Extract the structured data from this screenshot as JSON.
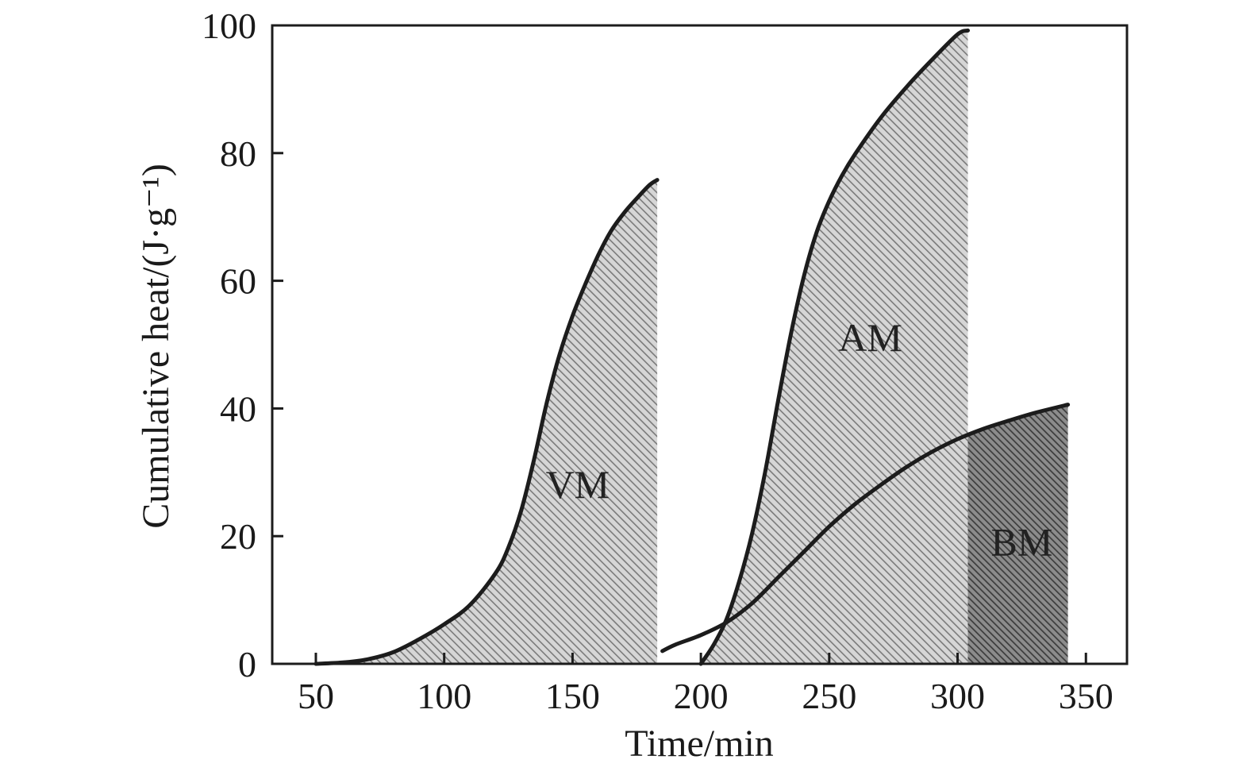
{
  "chart_data": {
    "type": "area",
    "xlabel": "Time/min",
    "ylabel": "Cumulative heat/(J·g⁻¹)",
    "xlim": [
      33,
      366
    ],
    "ylim": [
      0,
      100
    ],
    "xticks": [
      50,
      100,
      150,
      200,
      250,
      300,
      350
    ],
    "yticks": [
      0,
      20,
      40,
      60,
      80,
      100
    ],
    "grid": false,
    "legend": "none",
    "series": [
      {
        "name": "VM",
        "fill_color": "#9a9a9a",
        "x": [
          50,
          60,
          70,
          80,
          90,
          100,
          110,
          120,
          125,
          130,
          135,
          140,
          145,
          150,
          155,
          160,
          165,
          170,
          175,
          180,
          183
        ],
        "y": [
          0,
          0.2,
          0.7,
          1.8,
          3.8,
          6.2,
          9.2,
          14.2,
          18.2,
          24.0,
          32.0,
          41.0,
          48.5,
          54.5,
          59.5,
          64.0,
          67.8,
          70.6,
          72.9,
          75.0,
          75.8
        ]
      },
      {
        "name": "AM",
        "fill_color": "#9a9a9a",
        "x": [
          200,
          205,
          210,
          215,
          220,
          225,
          230,
          235,
          240,
          245,
          250,
          255,
          260,
          270,
          280,
          290,
          300,
          304
        ],
        "y": [
          0,
          3.0,
          7.0,
          13.0,
          20.5,
          30.0,
          41.0,
          51.5,
          60.5,
          67.5,
          72.5,
          76.5,
          79.8,
          85.5,
          90.3,
          94.6,
          98.6,
          99.2
        ]
      },
      {
        "name": "BM",
        "fill_color": "#7a7a7a",
        "x": [
          185,
          190,
          200,
          210,
          220,
          230,
          240,
          250,
          260,
          270,
          280,
          290,
          300,
          310,
          320,
          330,
          343
        ],
        "y": [
          2.0,
          3.0,
          4.5,
          6.5,
          9.5,
          13.5,
          17.5,
          21.5,
          25.0,
          28.0,
          30.8,
          33.2,
          35.2,
          36.8,
          38.1,
          39.3,
          40.6
        ]
      }
    ]
  }
}
